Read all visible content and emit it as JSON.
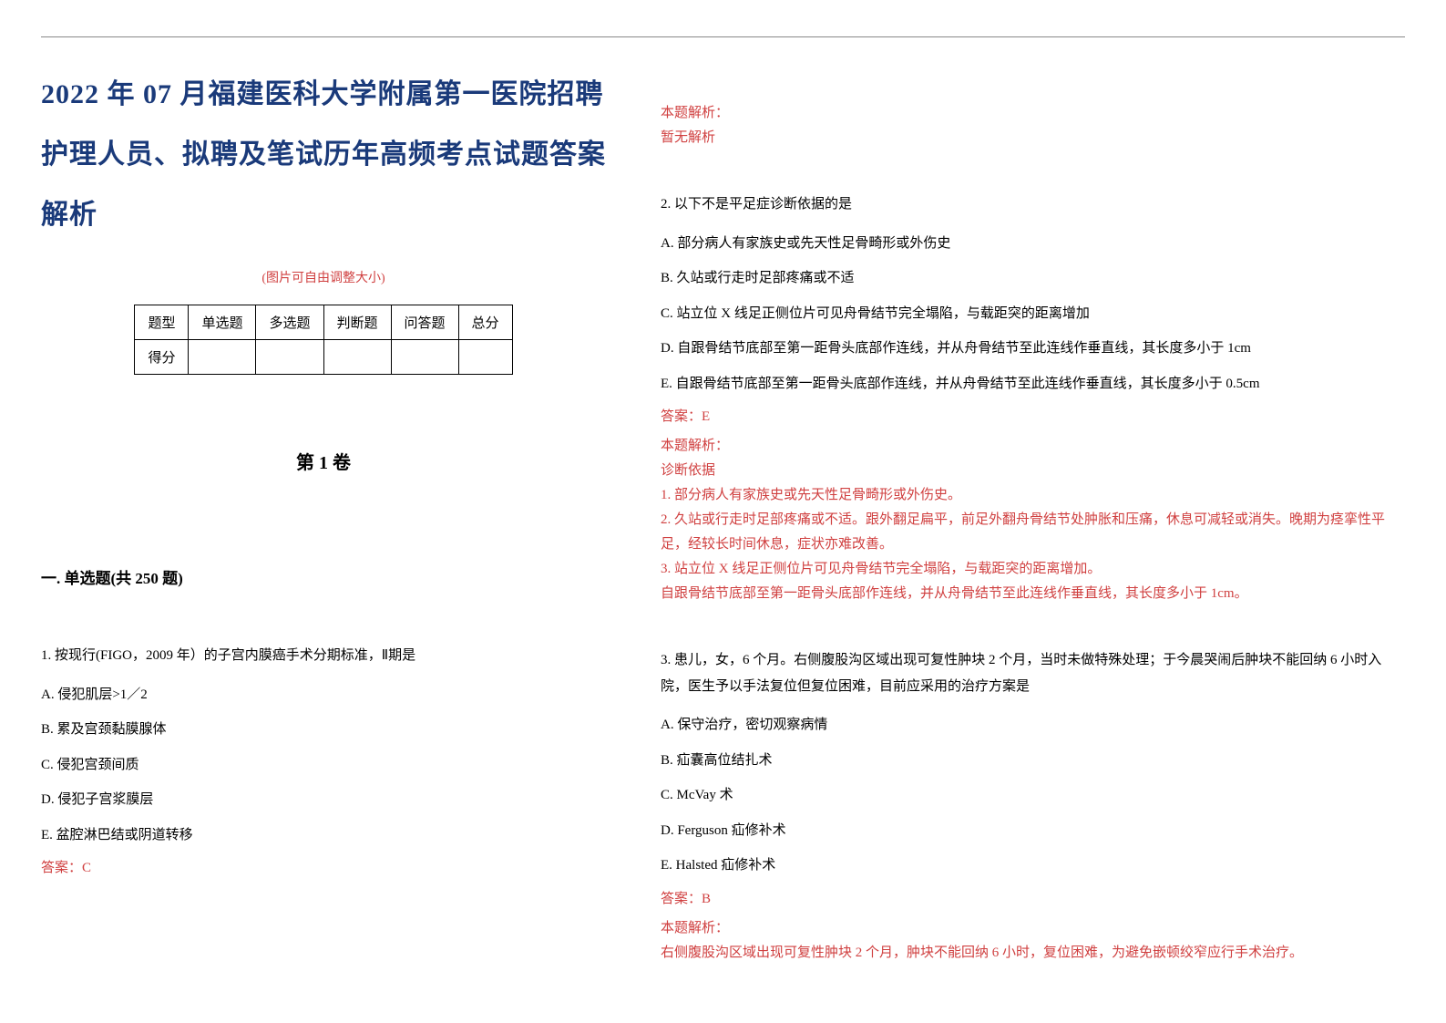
{
  "colors": {
    "title": "#1a3a7a",
    "red": "#d04040",
    "text": "#000000",
    "border": "#888888",
    "background": "#ffffff"
  },
  "typography": {
    "title_fontsize": 30,
    "body_fontsize": 15,
    "section_fontsize": 17,
    "volume_fontsize": 20
  },
  "title": "2022 年 07 月福建医科大学附属第一医院招聘护理人员、拟聘及笔试历年高频考点试题答案解析",
  "image_note": "(图片可自由调整大小)",
  "score_table": {
    "headers": [
      "题型",
      "单选题",
      "多选题",
      "判断题",
      "问答题",
      "总分"
    ],
    "row_label": "得分"
  },
  "volume_title": "第 1 卷",
  "section_title": "一. 单选题(共 250 题)",
  "left_question": {
    "number": "1.",
    "text": "按现行(FIGO，2009 年）的子宫内膜癌手术分期标准，Ⅱ期是",
    "options": [
      "A. 侵犯肌层>1／2",
      "B. 累及宫颈黏膜腺体",
      "C. 侵犯宫颈间质",
      "D. 侵犯子宫浆膜层",
      "E. 盆腔淋巴结或阴道转移"
    ],
    "answer": "答案：C"
  },
  "right_questions": [
    {
      "analysis_label": "本题解析：",
      "analysis_content": "暂无解析"
    },
    {
      "number": "2.",
      "text": "以下不是平足症诊断依据的是",
      "options": [
        "A. 部分病人有家族史或先天性足骨畸形或外伤史",
        "B. 久站或行走时足部疼痛或不适",
        "C. 站立位 X 线足正侧位片可见舟骨结节完全塌陷，与载距突的距离增加",
        "D. 自跟骨结节底部至第一距骨头底部作连线，并从舟骨结节至此连线作垂直线，其长度多小于 1cm",
        "E. 自跟骨结节底部至第一距骨头底部作连线，并从舟骨结节至此连线作垂直线，其长度多小于 0.5cm"
      ],
      "answer": "答案：E",
      "analysis_label": "本题解析：",
      "analysis_lines": [
        "诊断依据",
        "1. 部分病人有家族史或先天性足骨畸形或外伤史。",
        "2. 久站或行走时足部疼痛或不适。跟外翻足扁平，前足外翻舟骨结节处肿胀和压痛，休息可减轻或消失。晚期为痉挛性平足，经较长时间休息，症状亦难改善。",
        "3. 站立位 X 线足正侧位片可见舟骨结节完全塌陷，与载距突的距离增加。",
        "自跟骨结节底部至第一距骨头底部作连线，并从舟骨结节至此连线作垂直线，其长度多小于 1cm。"
      ]
    },
    {
      "number": "3.",
      "text": "患儿，女，6 个月。右侧腹股沟区域出现可复性肿块 2 个月，当时未做特殊处理；于今晨哭闹后肿块不能回纳 6 小时入院，医生予以手法复位但复位困难，目前应采用的治疗方案是",
      "options": [
        "A. 保守治疗，密切观察病情",
        "B. 疝囊高位结扎术",
        "C. McVay 术",
        "D. Ferguson 疝修补术",
        "E. Halsted 疝修补术"
      ],
      "answer": "答案：B",
      "analysis_label": "本题解析：",
      "analysis_lines": [
        "右侧腹股沟区域出现可复性肿块 2 个月，肿块不能回纳 6 小时，复位困难，为避免嵌顿绞窄应行手术治疗。"
      ]
    }
  ]
}
